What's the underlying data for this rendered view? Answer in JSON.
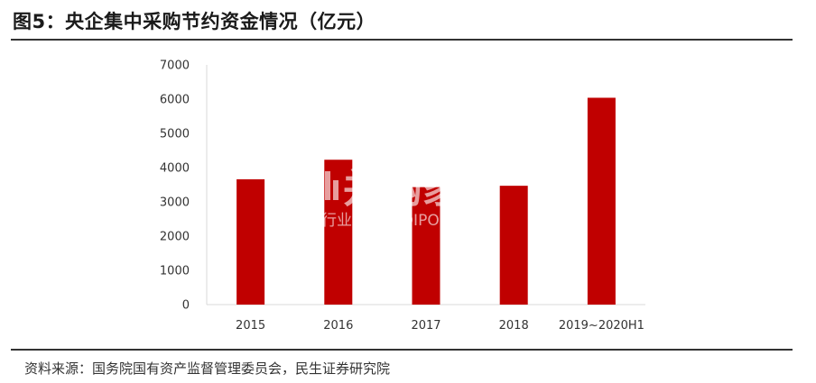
{
  "title": "图5：央企集中采购节约资金情况（亿元）",
  "source": "资料来源：国务院国有资产监督管理委员会，民生证券研究院",
  "watermark": {
    "main": "并购家",
    "sub": "行业报告 IPOIPO.CN"
  },
  "colors": {
    "bar": "#c00000",
    "axis": "#d9d9d9",
    "rule": "#333333"
  },
  "chart_data": {
    "type": "bar",
    "categories": [
      "2015",
      "2016",
      "2017",
      "2018",
      "2019~2020H1"
    ],
    "values": [
      3660,
      4230,
      3430,
      3470,
      6040
    ],
    "title": "",
    "xlabel": "",
    "ylabel": "",
    "ylim": [
      0,
      7000
    ],
    "yticks": [
      0,
      1000,
      2000,
      3000,
      4000,
      5000,
      6000,
      7000
    ],
    "grid": false,
    "legend": "none"
  }
}
